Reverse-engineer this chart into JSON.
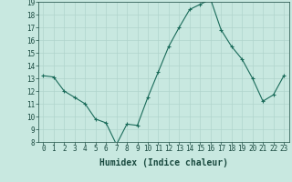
{
  "x": [
    0,
    1,
    2,
    3,
    4,
    5,
    6,
    7,
    8,
    9,
    10,
    11,
    12,
    13,
    14,
    15,
    16,
    17,
    18,
    19,
    20,
    21,
    22,
    23
  ],
  "y": [
    13.2,
    13.1,
    12.0,
    11.5,
    11.0,
    9.8,
    9.5,
    7.8,
    9.4,
    9.3,
    11.5,
    13.5,
    15.5,
    17.0,
    18.4,
    18.8,
    19.2,
    16.8,
    15.5,
    14.5,
    13.0,
    11.2,
    11.7,
    13.2
  ],
  "xlabel": "Humidex (Indice chaleur)",
  "ylim": [
    8,
    19
  ],
  "yticks": [
    8,
    9,
    10,
    11,
    12,
    13,
    14,
    15,
    16,
    17,
    18,
    19
  ],
  "xticks": [
    0,
    1,
    2,
    3,
    4,
    5,
    6,
    7,
    8,
    9,
    10,
    11,
    12,
    13,
    14,
    15,
    16,
    17,
    18,
    19,
    20,
    21,
    22,
    23
  ],
  "line_color": "#1a6b5a",
  "marker_color": "#1a6b5a",
  "bg_color": "#c8e8e0",
  "grid_color": "#b0d4cc",
  "xlabel_fontsize": 7,
  "tick_fontsize": 5.5,
  "xlabel_color": "#1a4a40",
  "tick_color": "#1a4a40"
}
